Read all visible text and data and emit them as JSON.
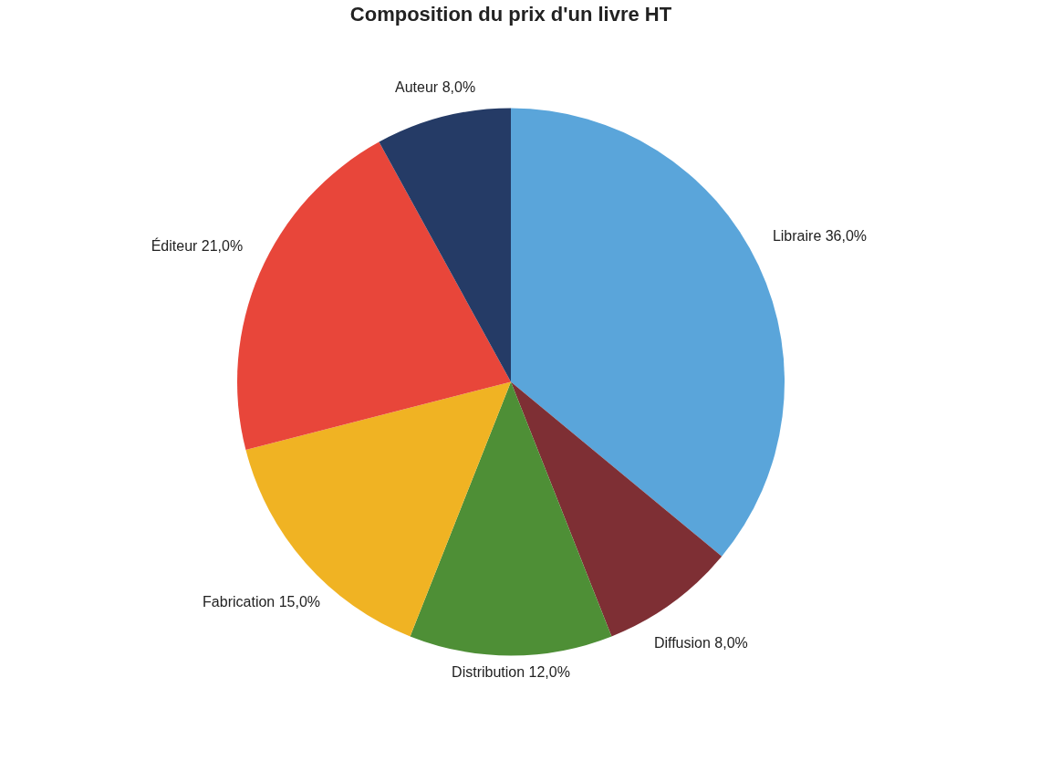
{
  "chart_data": {
    "type": "pie",
    "title": "Composition du prix d'un livre HT",
    "categories": [
      "Libraire",
      "Diffusion",
      "Distribution",
      "Fabrication",
      "Éditeur",
      "Auteur"
    ],
    "values": [
      36,
      8,
      12,
      15,
      21,
      8
    ],
    "value_labels": [
      "36,0%",
      "8,0%",
      "12,0%",
      "15,0%",
      "21,0%",
      "8,0%"
    ],
    "colors": [
      "#5aa5da",
      "#7e2f34",
      "#4e8f36",
      "#f0b323",
      "#e8463a",
      "#253b66"
    ],
    "legend": false
  }
}
